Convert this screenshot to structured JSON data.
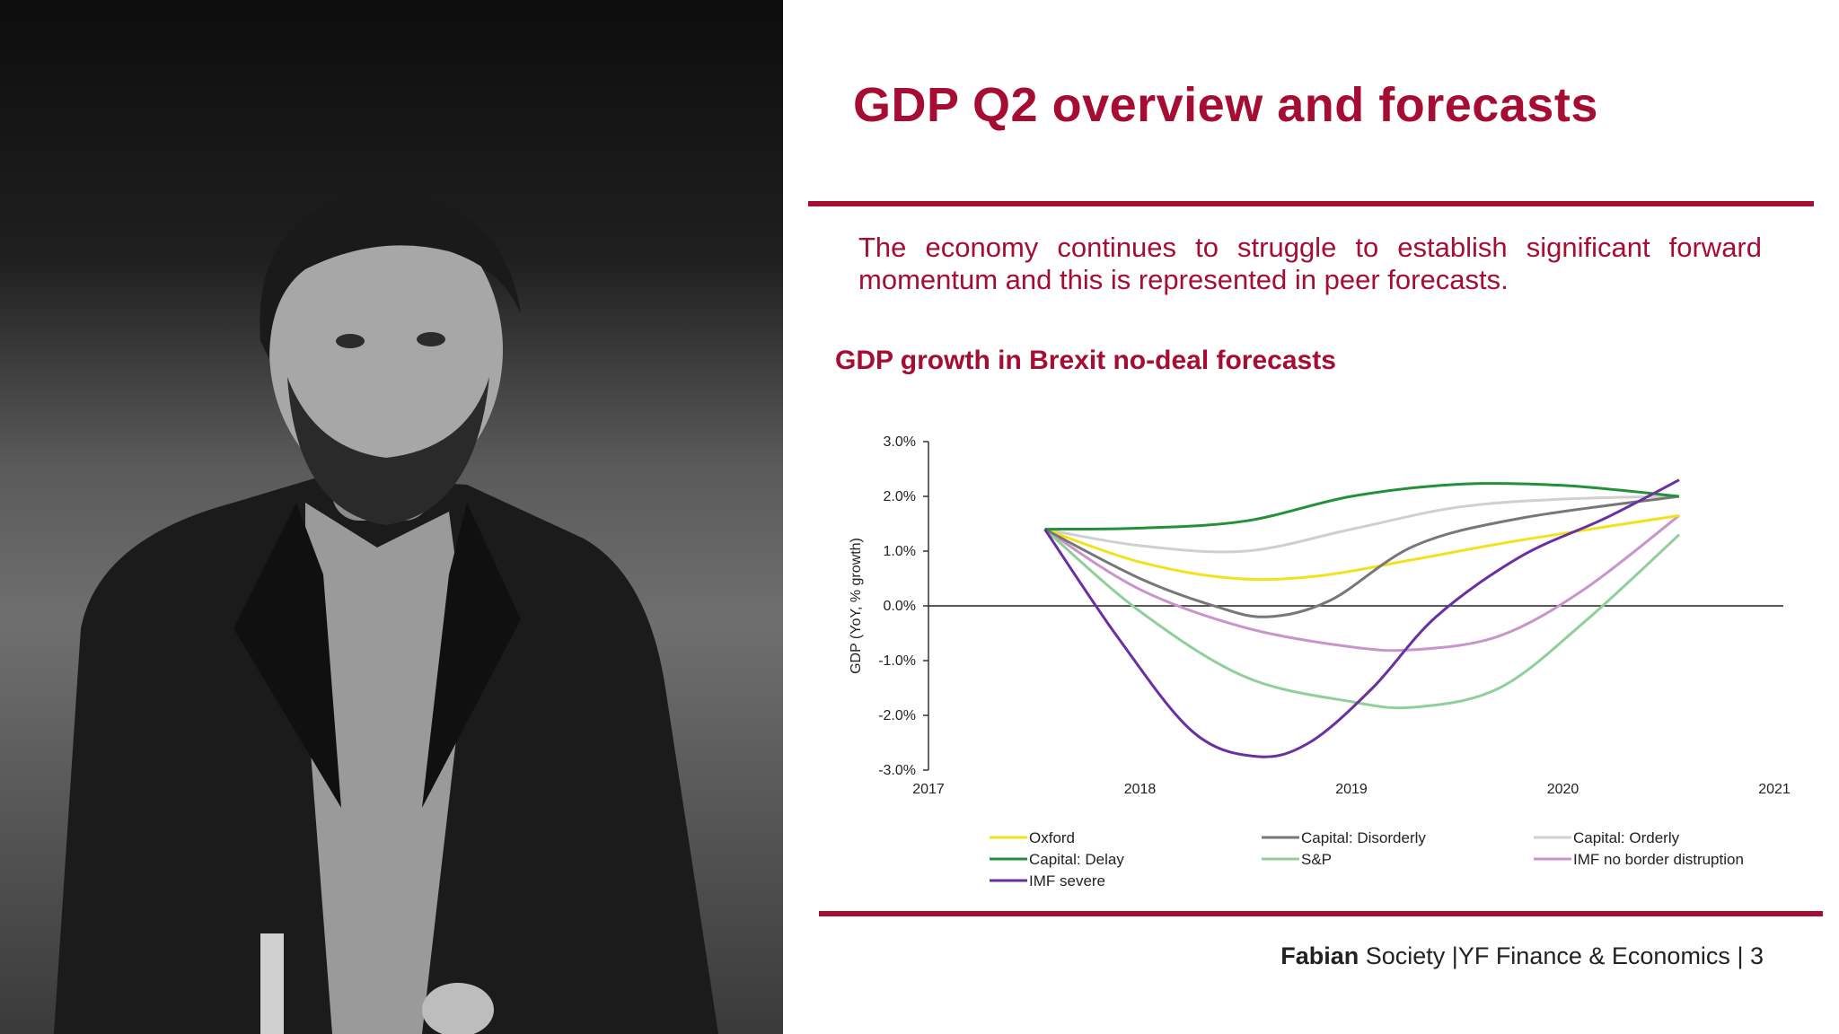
{
  "slide": {
    "title": "GDP Q2 overview and forecasts",
    "subtitle": "The economy continues to struggle to establish significant forward momentum and this is represented in peer forecasts.",
    "chart_heading": "GDP growth in Brexit no-deal forecasts"
  },
  "footer": {
    "org_bold": "Fabian",
    "org_rest": " Society",
    "separator": " |",
    "section": "YF Finance & Economics",
    "page_sep": " | ",
    "page": "3"
  },
  "photo": {
    "alt": "photo"
  },
  "colors": {
    "accent": "#a50d33"
  },
  "chart_data": {
    "type": "line",
    "title": "GDP growth in Brexit no-deal forecasts",
    "xlabel": "",
    "ylabel": "GDP (YoY, % growth)",
    "xlim": [
      2017,
      2021
    ],
    "ylim": [
      -3,
      3
    ],
    "xticks": [
      2017,
      2018,
      2019,
      2020,
      2021
    ],
    "yticks": [
      -3,
      -2,
      -1,
      0,
      1,
      2,
      3
    ],
    "ytick_labels": [
      "-3.0%",
      "-2.0%",
      "-1.0%",
      "0.0%",
      "1.0%",
      "2.0%",
      "3.0%"
    ],
    "grid": false,
    "legend": "bottom",
    "series": [
      {
        "name": "Oxford",
        "color": "#f2e11b",
        "x": [
          2017.55,
          2018.0,
          2018.45,
          2018.85,
          2019.3,
          2019.8,
          2020.55
        ],
        "y": [
          1.4,
          0.8,
          0.5,
          0.55,
          0.85,
          1.2,
          1.65
        ]
      },
      {
        "name": "Capital: Disorderly",
        "color": "#777777",
        "x": [
          2017.55,
          2018.0,
          2018.35,
          2018.6,
          2018.9,
          2019.3,
          2019.8,
          2020.55
        ],
        "y": [
          1.4,
          0.5,
          0.0,
          -0.2,
          0.1,
          1.1,
          1.6,
          2.0
        ]
      },
      {
        "name": "Capital: Orderly",
        "color": "#cfcfcf",
        "x": [
          2017.55,
          2018.0,
          2018.5,
          2019.0,
          2019.5,
          2020.0,
          2020.55
        ],
        "y": [
          1.4,
          1.1,
          1.0,
          1.4,
          1.8,
          1.95,
          2.0
        ]
      },
      {
        "name": "Capital: Delay",
        "color": "#23913a",
        "x": [
          2017.55,
          2018.0,
          2018.5,
          2019.0,
          2019.5,
          2020.0,
          2020.55
        ],
        "y": [
          1.4,
          1.42,
          1.55,
          2.0,
          2.22,
          2.2,
          2.0
        ]
      },
      {
        "name": "S&P",
        "color": "#90cf9a",
        "x": [
          2017.55,
          2018.0,
          2018.5,
          2019.0,
          2019.3,
          2019.7,
          2020.1,
          2020.55
        ],
        "y": [
          1.4,
          -0.1,
          -1.3,
          -1.75,
          -1.85,
          -1.5,
          -0.3,
          1.3
        ]
      },
      {
        "name": "IMF no border distruption",
        "color": "#c993cc",
        "x": [
          2017.55,
          2018.0,
          2018.5,
          2019.0,
          2019.3,
          2019.7,
          2020.1,
          2020.55
        ],
        "y": [
          1.4,
          0.3,
          -0.4,
          -0.75,
          -0.8,
          -0.55,
          0.3,
          1.65
        ]
      },
      {
        "name": "IMF severe",
        "color": "#6a2fa0",
        "x": [
          2017.55,
          2017.9,
          2018.25,
          2018.55,
          2018.8,
          2019.1,
          2019.4,
          2019.8,
          2020.2,
          2020.55
        ],
        "y": [
          1.4,
          -0.6,
          -2.3,
          -2.75,
          -2.5,
          -1.5,
          -0.2,
          0.9,
          1.6,
          2.3
        ]
      }
    ]
  }
}
